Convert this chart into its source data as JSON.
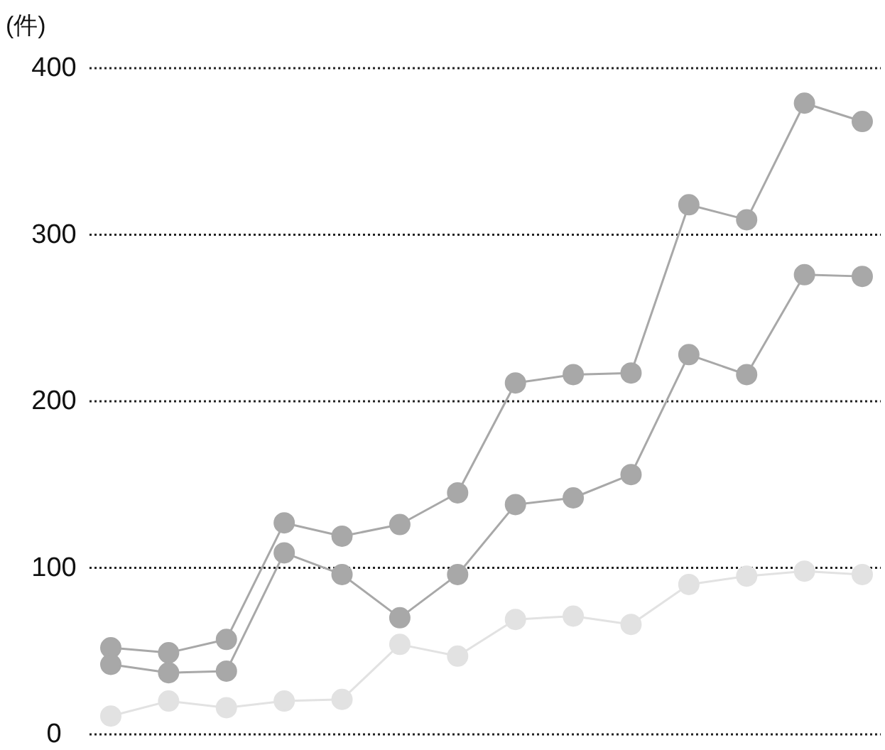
{
  "chart_data": {
    "type": "line",
    "ylabel": "(件)",
    "categories": [
      null,
      null,
      null,
      null,
      null,
      null,
      null,
      null,
      null,
      null,
      null,
      null,
      null,
      null
    ],
    "series": [
      {
        "color": "#a8a8a8",
        "values": [
          52,
          49,
          57,
          127,
          119,
          126,
          145,
          211,
          216,
          217,
          318,
          309,
          379,
          368
        ]
      },
      {
        "color": "#a8a8a8",
        "values": [
          42,
          37,
          38,
          109,
          96,
          70,
          96,
          138,
          142,
          156,
          228,
          216,
          276,
          275
        ]
      },
      {
        "color": "#e2e2e2",
        "values": [
          11,
          20,
          16,
          20,
          21,
          54,
          47,
          69,
          71,
          66,
          90,
          95,
          98,
          96
        ]
      }
    ],
    "ylim": [
      0,
      400
    ],
    "yticks": [
      0,
      100,
      200,
      300,
      400
    ],
    "grid": "y",
    "marker": "circle",
    "line_style": "solid"
  }
}
